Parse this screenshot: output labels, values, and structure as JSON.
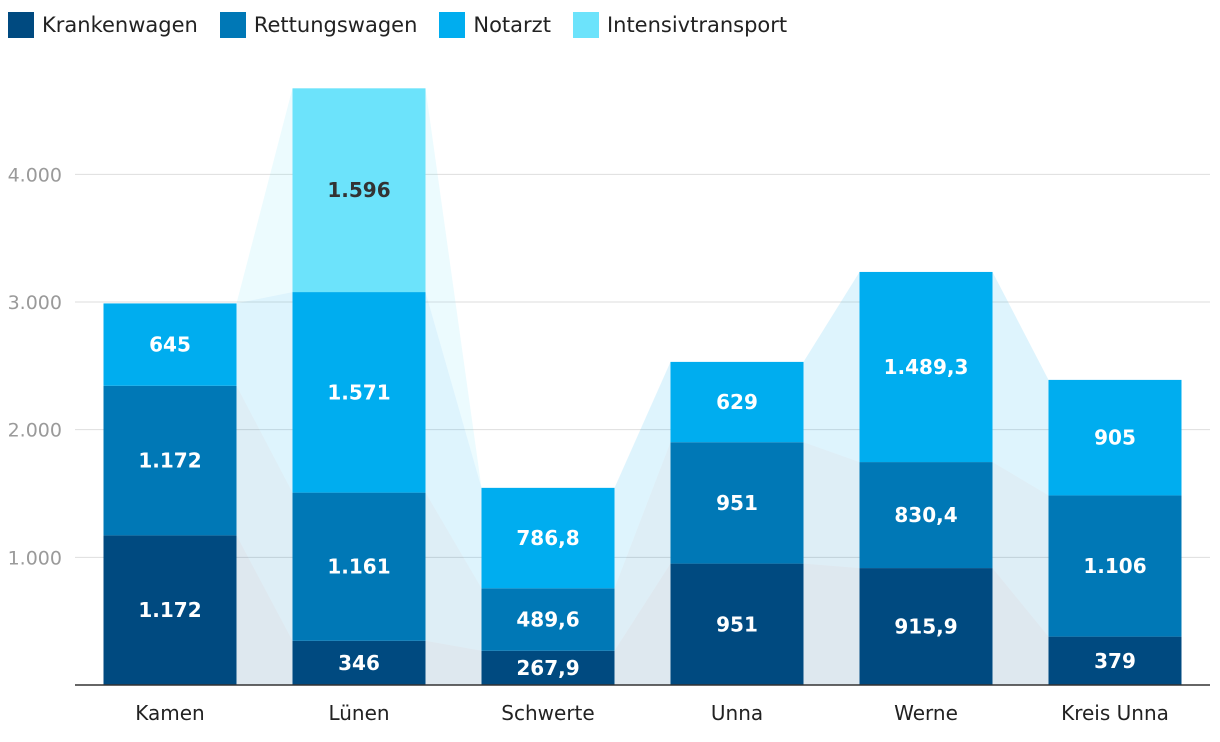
{
  "chart_data": {
    "type": "bar",
    "stacked": true,
    "categories": [
      "Kamen",
      "Lünen",
      "Schwerte",
      "Unna",
      "Werne",
      "Kreis Unna"
    ],
    "series": [
      {
        "name": "Krankenwagen",
        "color": "#004a80",
        "label_color": "#ffffff",
        "values": [
          1172,
          346,
          267.9,
          951,
          915.9,
          379
        ],
        "labels": [
          "1.172",
          "346",
          "267,9",
          "951",
          "915,9",
          "379"
        ]
      },
      {
        "name": "Rettungswagen",
        "color": "#0078b6",
        "label_color": "#ffffff",
        "values": [
          1172,
          1161,
          489.6,
          951,
          830.4,
          1106
        ],
        "labels": [
          "1.172",
          "1.161",
          "489,6",
          "951",
          "830,4",
          "1.106"
        ]
      },
      {
        "name": "Notarzt",
        "color": "#00adef",
        "label_color": "#ffffff",
        "values": [
          645,
          1571,
          786.8,
          629,
          1489.3,
          905
        ],
        "labels": [
          "645",
          "1.571",
          "786,8",
          "629",
          "1.489,3",
          "905"
        ]
      },
      {
        "name": "Intensivtransport",
        "color": "#6ce3fb",
        "label_color": "#333333",
        "values": [
          0,
          1596,
          0,
          0,
          0,
          0
        ],
        "labels": [
          "",
          "1.596",
          "",
          "",
          "",
          ""
        ]
      }
    ],
    "yticks": [
      1000,
      2000,
      3000,
      4000
    ],
    "ytick_labels": [
      "1.000",
      "2.000",
      "3.000",
      "4.000"
    ],
    "ylim": [
      0,
      4700
    ],
    "grid": true,
    "legend": "top-left"
  }
}
